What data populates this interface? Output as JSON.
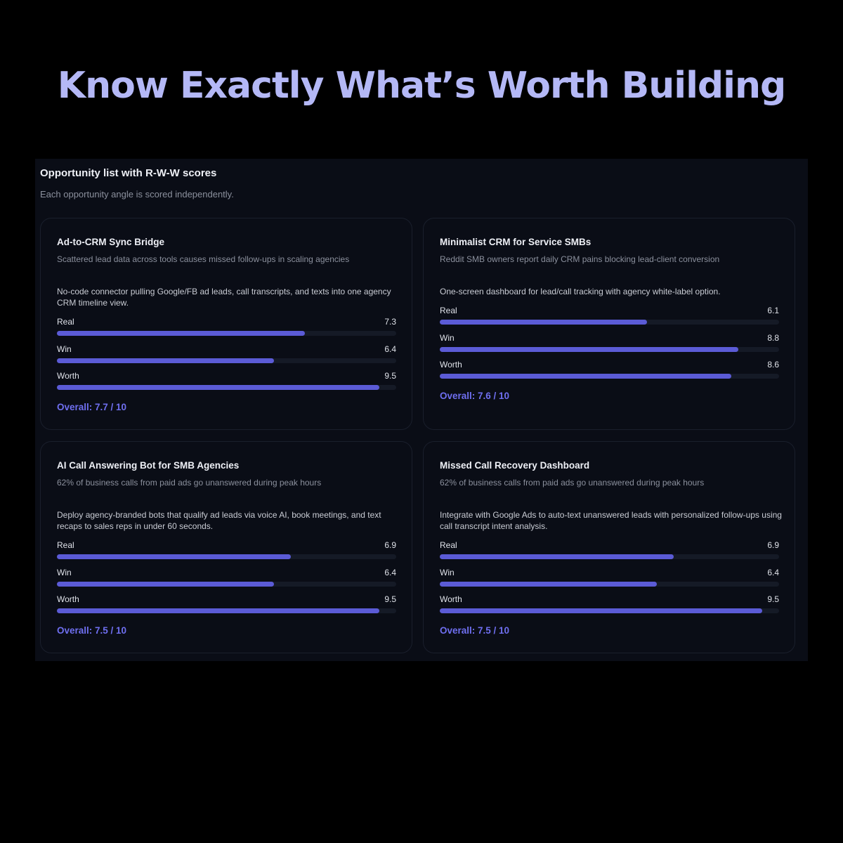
{
  "hero": {
    "title": "Know Exactly What’s Worth Building"
  },
  "panel": {
    "title": "Opportunity list with R-W-W scores",
    "subtitle": "Each opportunity angle is scored independently."
  },
  "colors": {
    "hero_title": "#b4b8f6",
    "bar_fill": "#5b5bd6",
    "bar_track": "#151a26",
    "overall_text": "#6f6ff0",
    "panel_bg": "#0a0d16"
  },
  "score_max": 10,
  "cards": [
    {
      "title": "Ad-to-CRM Sync Bridge",
      "problem": "Scattered lead data across tools causes missed follow-ups in scaling agencies",
      "solution": "No-code connector pulling Google/FB ad leads, call transcripts, and texts into one agency CRM timeline view.",
      "metrics": [
        {
          "label": "Real",
          "value": "7.3",
          "score": 7.3
        },
        {
          "label": "Win",
          "value": "6.4",
          "score": 6.4
        },
        {
          "label": "Worth",
          "value": "9.5",
          "score": 9.5
        }
      ],
      "overall": "Overall: 7.7 / 10"
    },
    {
      "title": "Minimalist CRM for Service SMBs",
      "problem": "Reddit SMB owners report daily CRM pains blocking lead-client conversion",
      "solution": "One-screen dashboard for lead/call tracking with agency white-label option.",
      "metrics": [
        {
          "label": "Real",
          "value": "6.1",
          "score": 6.1
        },
        {
          "label": "Win",
          "value": "8.8",
          "score": 8.8
        },
        {
          "label": "Worth",
          "value": "8.6",
          "score": 8.6
        }
      ],
      "overall": "Overall: 7.6 / 10"
    },
    {
      "title": "AI Call Answering Bot for SMB Agencies",
      "problem": "62% of business calls from paid ads go unanswered during peak hours",
      "solution": "Deploy agency-branded bots that qualify ad leads via voice AI, book meetings, and text recaps to sales reps in under 60 seconds.",
      "metrics": [
        {
          "label": "Real",
          "value": "6.9",
          "score": 6.9
        },
        {
          "label": "Win",
          "value": "6.4",
          "score": 6.4
        },
        {
          "label": "Worth",
          "value": "9.5",
          "score": 9.5
        }
      ],
      "overall": "Overall: 7.5 / 10"
    },
    {
      "title": "Missed Call Recovery Dashboard",
      "problem": "62% of business calls from paid ads go unanswered during peak hours",
      "solution": "Integrate with Google Ads to auto-text unanswered leads with personalized follow-ups using call transcript intent analysis.",
      "metrics": [
        {
          "label": "Real",
          "value": "6.9",
          "score": 6.9
        },
        {
          "label": "Win",
          "value": "6.4",
          "score": 6.4
        },
        {
          "label": "Worth",
          "value": "9.5",
          "score": 9.5
        }
      ],
      "overall": "Overall: 7.5 / 10"
    }
  ]
}
